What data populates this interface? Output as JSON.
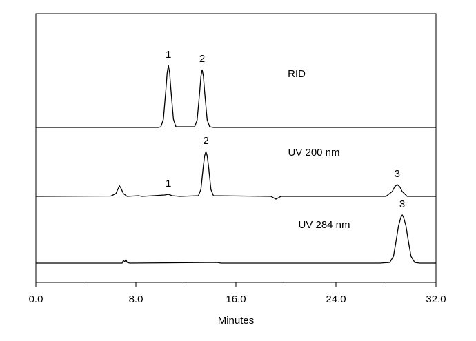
{
  "chart_data": [
    {
      "type": "line",
      "title": "RID",
      "color": "#000000",
      "x": [
        0,
        9.8,
        10.0,
        10.2,
        10.4,
        10.5,
        10.6,
        10.7,
        10.8,
        11.0,
        11.2,
        12.7,
        12.9,
        13.1,
        13.2,
        13.3,
        13.4,
        13.5,
        13.7,
        13.9,
        14.2,
        32
      ],
      "values": [
        5,
        5,
        6,
        17,
        60,
        84,
        95,
        84,
        60,
        17,
        6,
        6,
        16,
        56,
        79,
        89,
        79,
        56,
        16,
        6,
        5,
        5
      ],
      "xlim": [
        0,
        32
      ],
      "ylim": [
        0,
        100
      ],
      "annotations": [
        {
          "x": 10.6,
          "label": "1"
        },
        {
          "x": 13.3,
          "label": "2"
        }
      ]
    },
    {
      "type": "line",
      "title": "UV 200 nm",
      "color": "#000000",
      "x": [
        0,
        6.0,
        6.4,
        6.6,
        6.7,
        6.8,
        7.0,
        7.3,
        8.2,
        8.5,
        10.3,
        10.6,
        10.9,
        11.5,
        13.0,
        13.2,
        13.4,
        13.5,
        13.6,
        13.7,
        13.8,
        14.0,
        14.2,
        18.8,
        19.2,
        19.6,
        28.0,
        28.5,
        28.7,
        28.9,
        29.1,
        29.3,
        29.7,
        32
      ],
      "values": [
        5,
        5.5,
        9,
        17,
        20,
        17,
        9,
        5,
        6,
        5,
        7,
        8,
        6,
        5,
        6,
        15,
        50,
        64,
        70,
        64,
        50,
        15,
        6,
        5,
        1,
        5,
        5,
        12,
        19,
        22,
        19,
        12,
        5,
        5
      ],
      "xlim": [
        0,
        32
      ],
      "ylim": [
        0,
        100
      ],
      "annotations": [
        {
          "x": 10.6,
          "label": "1"
        },
        {
          "x": 13.6,
          "label": "2"
        },
        {
          "x": 28.9,
          "label": "3"
        }
      ]
    },
    {
      "type": "line",
      "title": "UV 284 nm",
      "color": "#000000",
      "x": [
        0,
        6.9,
        7.0,
        7.1,
        7.2,
        7.3,
        7.5,
        14.5,
        14.8,
        27.5,
        28.3,
        28.6,
        28.8,
        29.0,
        29.2,
        29.3,
        29.4,
        29.6,
        29.8,
        30.0,
        30.3,
        30.7,
        32
      ],
      "values": [
        5,
        5,
        9,
        7,
        10,
        6,
        5,
        6,
        5,
        5,
        6,
        15,
        36,
        59,
        72,
        75,
        72,
        59,
        36,
        15,
        6,
        5,
        5
      ],
      "xlim": [
        0,
        32
      ],
      "ylim": [
        0,
        100
      ],
      "annotations": [
        {
          "x": 29.3,
          "label": "3"
        }
      ],
      "xlabel": "Minutes",
      "xticks": [
        {
          "value": 0,
          "label": "0.0"
        },
        {
          "value": 8,
          "label": "8.0"
        },
        {
          "value": 16,
          "label": "16.0"
        },
        {
          "value": 24,
          "label": "24.0"
        },
        {
          "value": 32,
          "label": "32.0"
        }
      ],
      "xminorticks": [
        4,
        12,
        20,
        28
      ]
    }
  ]
}
